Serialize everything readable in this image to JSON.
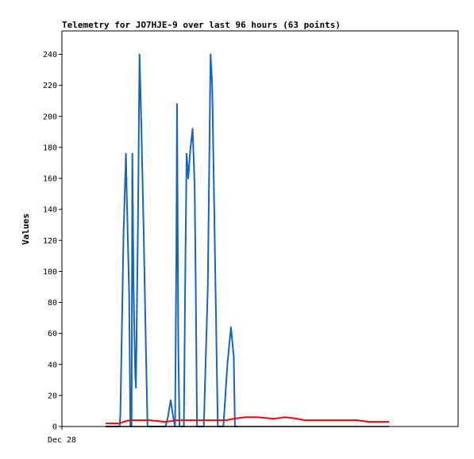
{
  "chart_data": {
    "type": "line",
    "title": "Telemetry for JO7HJE-9 over last 96 hours (63 points)",
    "xlabel": "",
    "ylabel": "Values",
    "x_tick_labels": [
      "Dec 28"
    ],
    "ylim": [
      0,
      240
    ],
    "yticks": [
      0,
      20,
      40,
      60,
      80,
      100,
      120,
      140,
      160,
      180,
      200,
      220,
      240
    ],
    "grid": false,
    "legend": "none",
    "series": [
      {
        "color": "#1565c0",
        "points": [
          [
            0.0,
            0
          ],
          [
            3.5,
            0
          ],
          [
            3.7,
            8
          ],
          [
            4.5,
            125
          ],
          [
            5.1,
            176
          ],
          [
            5.3,
            150
          ],
          [
            5.9,
            85
          ],
          [
            6.2,
            0
          ],
          [
            6.5,
            0
          ],
          [
            6.7,
            176
          ],
          [
            7.0,
            90
          ],
          [
            7.4,
            35
          ],
          [
            7.6,
            25
          ],
          [
            8.1,
            130
          ],
          [
            8.5,
            240
          ],
          [
            8.9,
            200
          ],
          [
            9.5,
            130
          ],
          [
            10.1,
            50
          ],
          [
            10.5,
            0
          ],
          [
            15.0,
            0
          ],
          [
            15.6,
            6
          ],
          [
            16.3,
            17
          ],
          [
            17.0,
            5
          ],
          [
            17.4,
            0
          ],
          [
            17.7,
            105
          ],
          [
            17.9,
            208
          ],
          [
            18.2,
            55
          ],
          [
            18.5,
            0
          ],
          [
            19.6,
            0
          ],
          [
            20.0,
            110
          ],
          [
            20.3,
            176
          ],
          [
            20.7,
            160
          ],
          [
            21.2,
            178
          ],
          [
            21.8,
            192
          ],
          [
            22.3,
            155
          ],
          [
            22.6,
            85
          ],
          [
            22.9,
            0
          ],
          [
            23.5,
            0
          ],
          [
            24.6,
            0
          ],
          [
            25.6,
            90
          ],
          [
            26.1,
            200
          ],
          [
            26.3,
            240
          ],
          [
            26.7,
            220
          ],
          [
            27.4,
            110
          ],
          [
            28.1,
            0
          ],
          [
            29.5,
            0
          ],
          [
            30.5,
            40
          ],
          [
            31.4,
            64
          ],
          [
            32.1,
            45
          ],
          [
            32.4,
            0
          ],
          [
            33.0,
            0
          ]
        ]
      },
      {
        "color": "#ff0000",
        "points": [
          [
            0.0,
            2
          ],
          [
            3.5,
            2
          ],
          [
            4.5,
            3
          ],
          [
            6.0,
            4
          ],
          [
            8.0,
            4
          ],
          [
            11.0,
            4
          ],
          [
            15.0,
            3
          ],
          [
            18.0,
            4
          ],
          [
            22.0,
            4
          ],
          [
            27.0,
            4
          ],
          [
            30.0,
            4
          ],
          [
            32.0,
            5
          ],
          [
            35.0,
            6
          ],
          [
            38.0,
            6
          ],
          [
            42.0,
            5
          ],
          [
            45.0,
            6
          ],
          [
            48.0,
            5
          ],
          [
            50.0,
            4
          ],
          [
            55.0,
            4
          ],
          [
            60.0,
            4
          ],
          [
            63.0,
            4
          ],
          [
            66.0,
            3
          ],
          [
            69.0,
            3
          ],
          [
            71.0,
            3
          ]
        ]
      },
      {
        "color": "#000000",
        "points": [
          [
            0.0,
            0
          ],
          [
            71.0,
            0
          ]
        ]
      }
    ],
    "xlim": [
      0,
      96
    ]
  }
}
